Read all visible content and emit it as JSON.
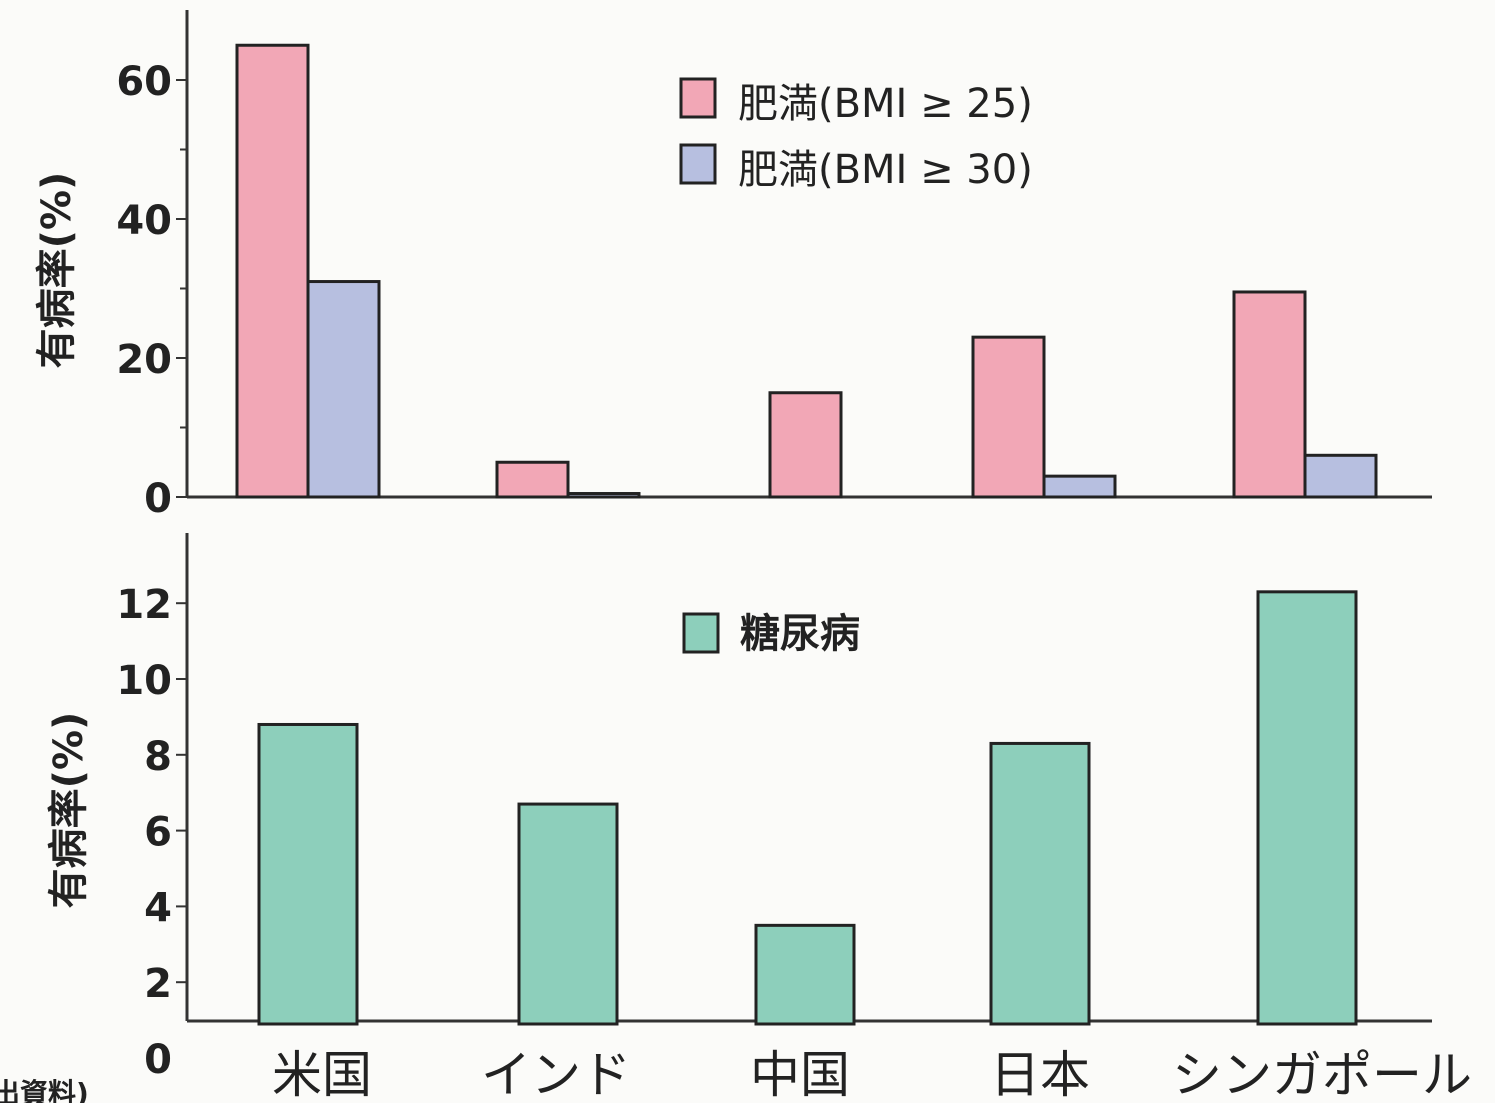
{
  "colors": {
    "bmi25": "#f2a7b6",
    "bmi30": "#b7bfe0",
    "diabetes": "#8dcfbb"
  },
  "categories": [
    "米国",
    "インド",
    "中国",
    "日本",
    "シンガポール"
  ],
  "chart_data": [
    {
      "type": "bar",
      "ylabel": "有病率(%)",
      "ylim": [
        0,
        70
      ],
      "yticks": [
        0,
        20,
        40,
        60
      ],
      "series": [
        {
          "name": "肥満(BMI ≥ 25)",
          "values": [
            65,
            5,
            15,
            23,
            29.5
          ]
        },
        {
          "name": "肥満(BMI ≥ 30)",
          "values": [
            31,
            0.5,
            0,
            3,
            6
          ]
        }
      ],
      "legend": "top-center"
    },
    {
      "type": "bar",
      "ylabel": "有病率(%)",
      "ylim": [
        0,
        13.5
      ],
      "yticks": [
        0,
        2,
        4,
        6,
        8,
        10,
        12
      ],
      "series": [
        {
          "name": "糖尿病",
          "values": [
            8.8,
            6.7,
            3.5,
            8.3,
            12.3
          ]
        }
      ],
      "legend": "top-center"
    }
  ],
  "footnote": "出資料)"
}
